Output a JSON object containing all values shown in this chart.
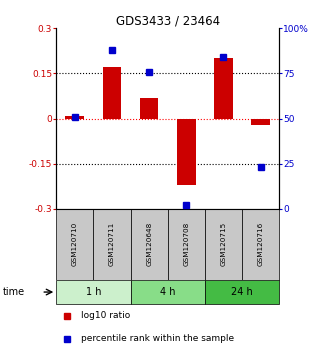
{
  "title": "GDS3433 / 23464",
  "samples": [
    "GSM120710",
    "GSM120711",
    "GSM120648",
    "GSM120708",
    "GSM120715",
    "GSM120716"
  ],
  "log10_ratio": [
    0.01,
    0.17,
    0.07,
    -0.22,
    0.2,
    -0.02
  ],
  "percentile_rank": [
    51,
    88,
    76,
    2,
    84,
    23
  ],
  "ylim_left": [
    -0.3,
    0.3
  ],
  "ylim_right": [
    0,
    100
  ],
  "yticks_left": [
    -0.3,
    -0.15,
    0,
    0.15,
    0.3
  ],
  "yticks_right": [
    0,
    25,
    50,
    75,
    100
  ],
  "ytick_labels_left": [
    "-0.3",
    "-0.15",
    "0",
    "0.15",
    "0.3"
  ],
  "ytick_labels_right": [
    "0",
    "25",
    "50",
    "75",
    "100%"
  ],
  "hlines": [
    0.15,
    0,
    -0.15
  ],
  "hline_colors": [
    "black",
    "red",
    "black"
  ],
  "bar_color": "#cc0000",
  "dot_color": "#0000cc",
  "time_groups": [
    {
      "label": "1 h",
      "start": 0,
      "end": 2,
      "color": "#ccf0cc"
    },
    {
      "label": "4 h",
      "start": 2,
      "end": 4,
      "color": "#88dd88"
    },
    {
      "label": "24 h",
      "start": 4,
      "end": 6,
      "color": "#44bb44"
    }
  ],
  "legend_bar_label": "log10 ratio",
  "legend_dot_label": "percentile rank within the sample",
  "bar_width": 0.5,
  "sample_box_color": "#c8c8c8",
  "xlabel_time": "time"
}
